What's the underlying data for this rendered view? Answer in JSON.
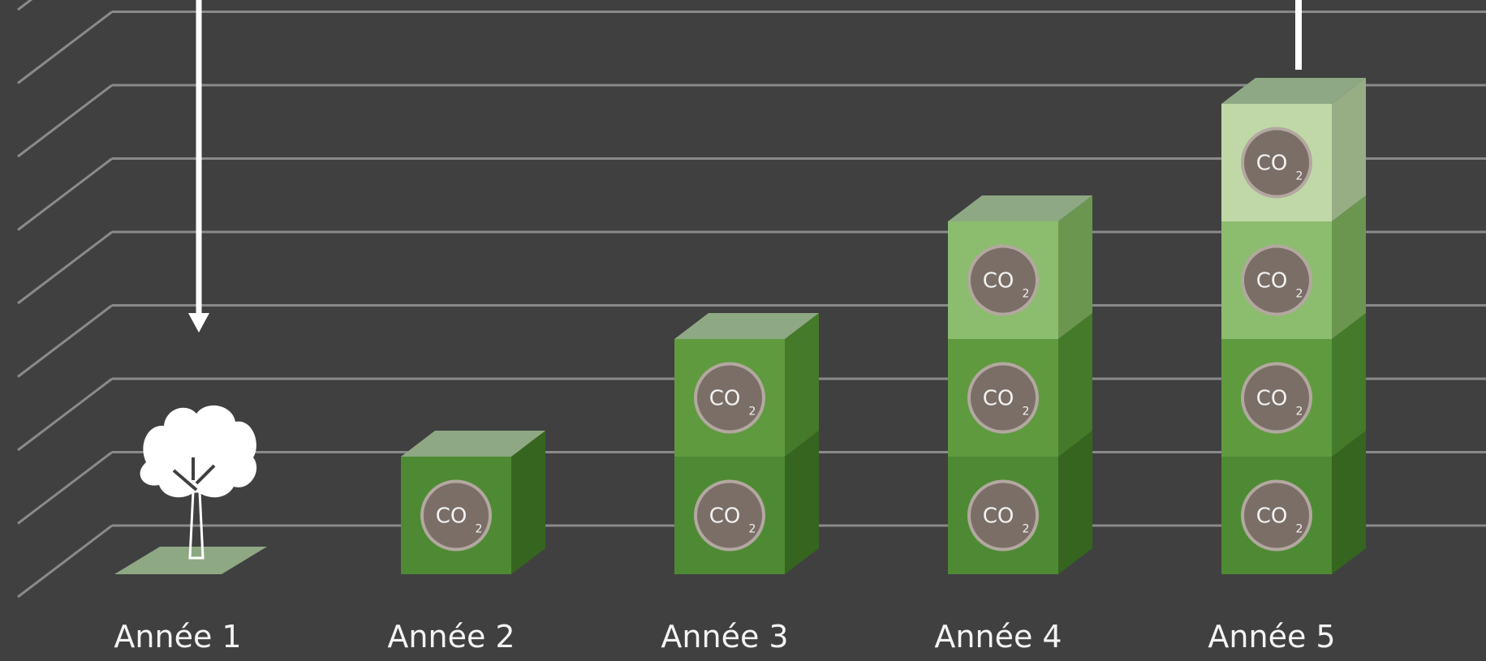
{
  "chart_data": {
    "type": "bar",
    "style": "3d-stacked-cubes",
    "categories": [
      "Année 1",
      "Année 2",
      "Année 3",
      "Année 4",
      "Année 5"
    ],
    "values": [
      0,
      1,
      2,
      3,
      4
    ],
    "unit_label": "CO",
    "unit_subscript": "2",
    "ylim": [
      0,
      8
    ],
    "grid": true,
    "title": "",
    "xlabel": "",
    "ylabel": "",
    "icon": "tree-icon",
    "arrows": [
      "arrow-down-icon",
      "arrow-up-line-icon"
    ]
  },
  "colors": {
    "background": "#404040",
    "grid": "#8a8a8a",
    "cube_shades": [
      "#4e8a34",
      "#5f9a3f",
      "#8cbc6e",
      "#c0d8a8"
    ],
    "cube_side_shades": [
      "#36651f",
      "#447a2a",
      "#6a9650",
      "#97ad84"
    ],
    "cube_top": "#8fa884",
    "co2_circle": "#7a6e66",
    "co2_ring": "#b3a8a0",
    "text": "#f4f4f4"
  }
}
